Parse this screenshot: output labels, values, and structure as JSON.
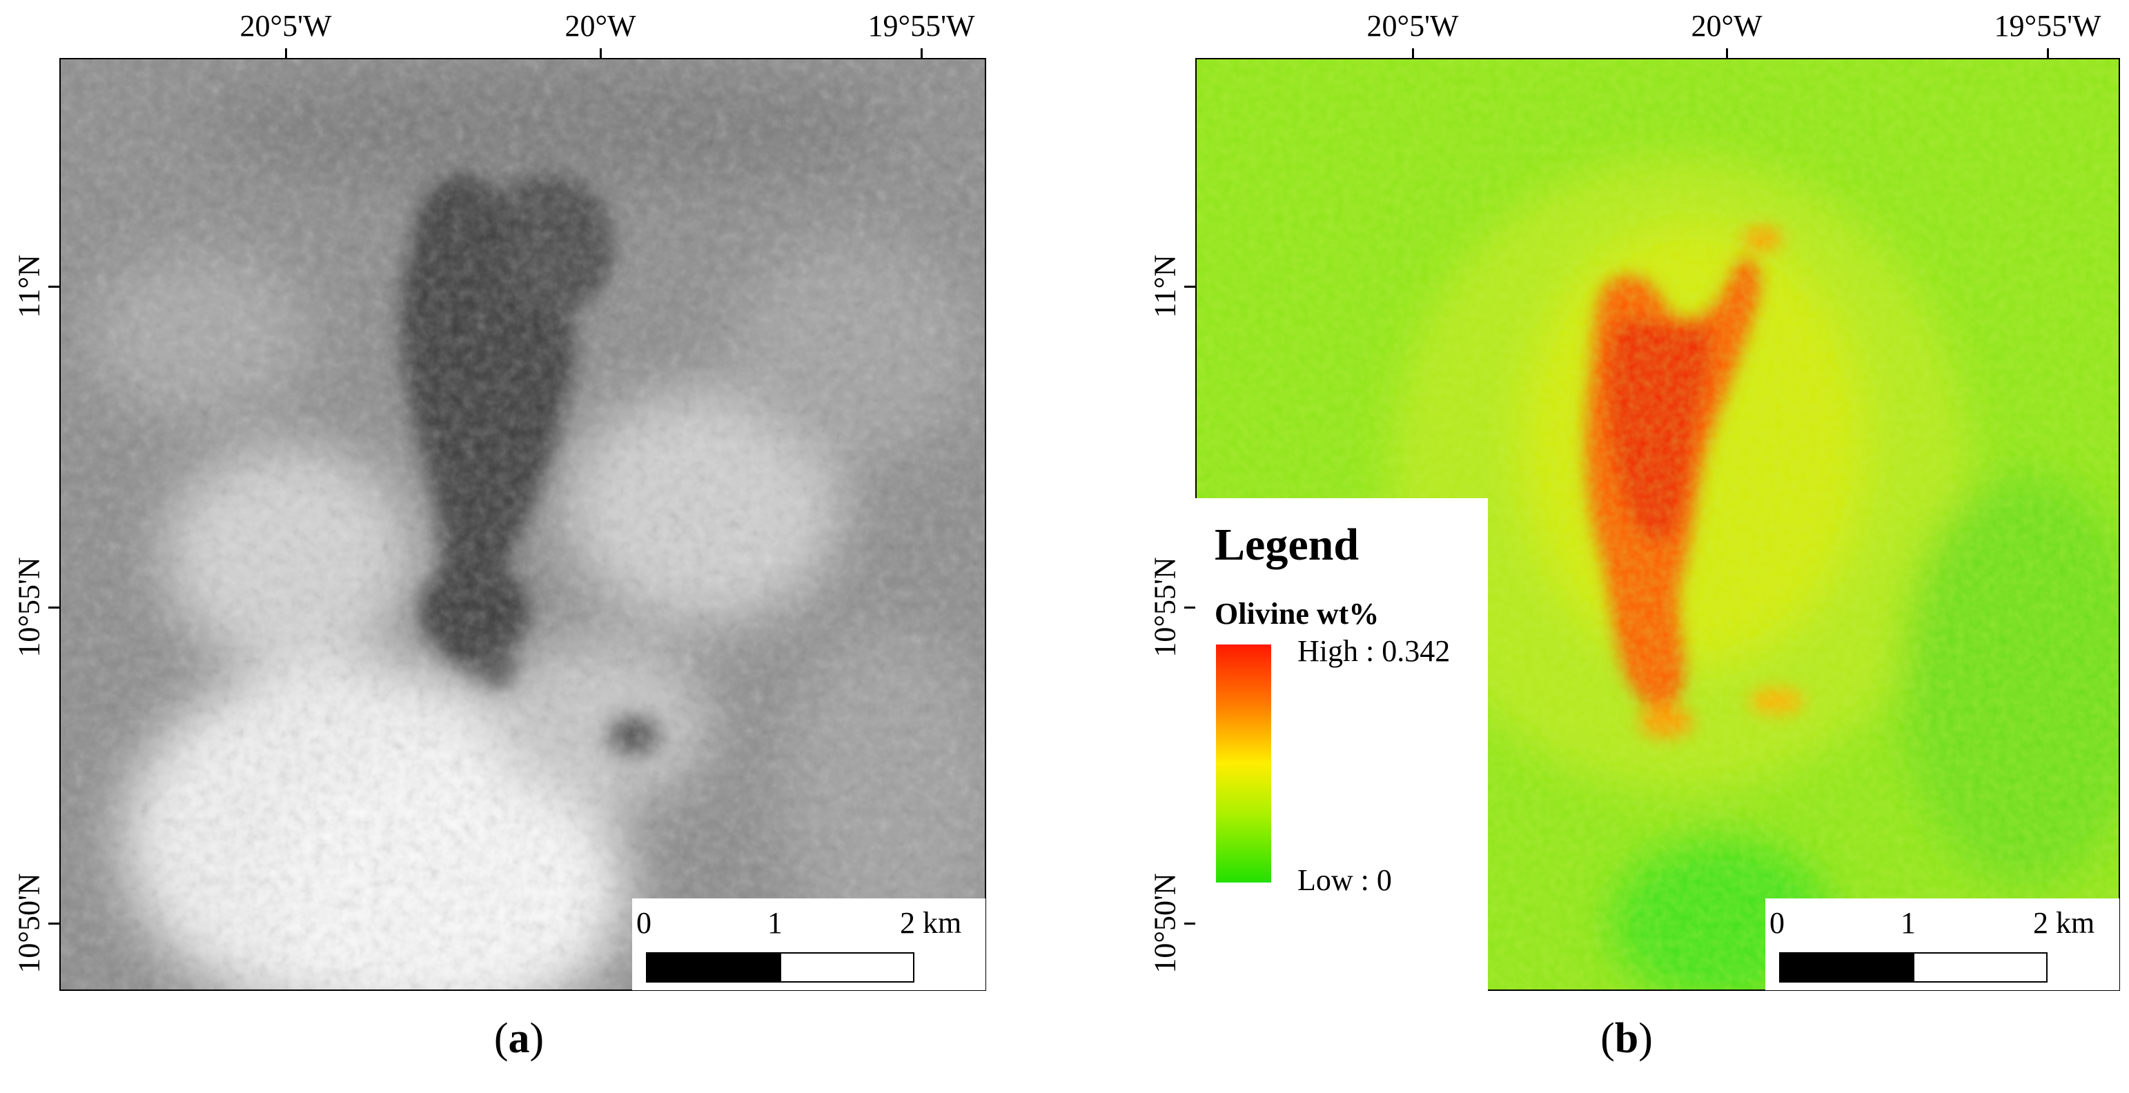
{
  "panels": [
    {
      "id": "a",
      "lon_ticks": [
        "20°5'W",
        "20°W",
        "19°55'W"
      ],
      "lat_ticks": [
        "11°N",
        "10°55'N",
        "10°50'N"
      ],
      "scale": {
        "t0": "0",
        "t1": "1",
        "t2": "2 km"
      },
      "caption_letter": "a"
    },
    {
      "id": "b",
      "lon_ticks": [
        "20°5'W",
        "20°W",
        "19°55'W"
      ],
      "lat_ticks": [
        "11°N",
        "10°55'N",
        "10°50'N"
      ],
      "scale": {
        "t0": "0",
        "t1": "1",
        "t2": "2 km"
      },
      "caption_letter": "b",
      "legend": {
        "title": "Legend",
        "variable": "Olivine wt%",
        "high": "High : 0.342",
        "low": "Low : 0",
        "colors": [
          "#ff1a00",
          "#ff7a00",
          "#ffee00",
          "#a8f000",
          "#22e000"
        ]
      }
    }
  ],
  "caption_open": "(",
  "caption_close": ")"
}
